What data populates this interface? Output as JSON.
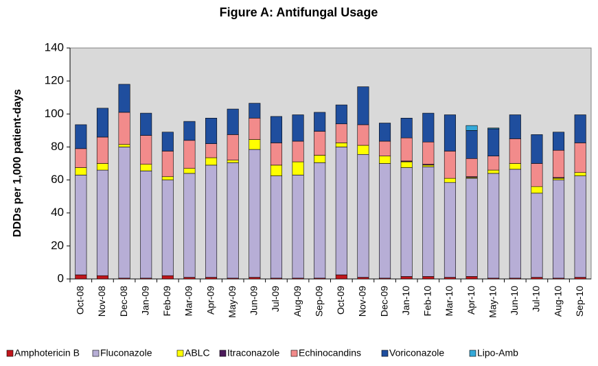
{
  "chart_data": {
    "type": "stacked_bar",
    "title": "Figure A: Antifungal Usage",
    "y_label": "DDDs per 1,000 patient-days",
    "categories": [
      "Oct-08",
      "Nov-08",
      "Dec-08",
      "Jan-09",
      "Feb-09",
      "Mar-09",
      "Apr-09",
      "May-09",
      "Jun-09",
      "Jul-09",
      "Aug-09",
      "Sep-09",
      "Oct-09",
      "Nov-09",
      "Dec-09",
      "Jan-10",
      "Feb-10",
      "Mar-10",
      "Apr-10",
      "May-10",
      "Jun-10",
      "Jul-10",
      "Aug-10",
      "Sep-10"
    ],
    "series": [
      {
        "name": "Amphotericin B",
        "color": "#c0161c",
        "values": [
          2.5,
          2,
          0.5,
          0.5,
          2,
          1,
          1,
          0.5,
          1,
          0.5,
          0.5,
          0.5,
          2.5,
          1,
          0.5,
          1.5,
          1.5,
          1,
          1.5,
          0.5,
          0.5,
          1,
          0.5,
          1
        ]
      },
      {
        "name": "Fluconazole",
        "color": "#b7aed6",
        "values": [
          60.5,
          64,
          79.5,
          65,
          58,
          63,
          68,
          70,
          77.5,
          62,
          62.5,
          70,
          77.5,
          74.5,
          69.5,
          66,
          66.5,
          57.5,
          59.5,
          63.5,
          66,
          51,
          59.5,
          61.5
        ]
      },
      {
        "name": "ABLC",
        "color": "#ffff00",
        "values": [
          4.5,
          4,
          1.5,
          4,
          2,
          3,
          4.5,
          1.5,
          6,
          6.5,
          8,
          4.5,
          2.5,
          5.5,
          4.5,
          3.5,
          1,
          2.5,
          0.5,
          2,
          3.5,
          4,
          1,
          2
        ]
      },
      {
        "name": "Itraconazole",
        "color": "#4b1a5a",
        "values": [
          0,
          0,
          0,
          0,
          0,
          0,
          0,
          0,
          0,
          0,
          0,
          0,
          0,
          0,
          0,
          0.5,
          0.5,
          0,
          0.5,
          0,
          0,
          0,
          0.5,
          0
        ]
      },
      {
        "name": "Echinocandins",
        "color": "#f28b8b",
        "values": [
          11.5,
          16,
          19.5,
          17.5,
          15.5,
          17,
          8.5,
          15.5,
          13,
          13.5,
          12.5,
          14.5,
          11.5,
          12.5,
          9,
          14,
          13.5,
          16.5,
          11,
          8.5,
          15,
          14,
          16.5,
          18
        ]
      },
      {
        "name": "Voriconazole",
        "color": "#1f4e9e",
        "values": [
          14.5,
          17.5,
          17,
          13.5,
          11.5,
          11.5,
          15.5,
          15.5,
          9,
          16,
          16,
          11.5,
          11.5,
          23,
          11,
          12,
          17.5,
          22,
          17,
          16.5,
          14.5,
          17.5,
          11,
          17
        ]
      },
      {
        "name": "Lipo-Amb",
        "color": "#35a9d8",
        "values": [
          0,
          0,
          0,
          0,
          0,
          0,
          0,
          0,
          0,
          0,
          0,
          0,
          0,
          0,
          0,
          0,
          0,
          0,
          3,
          0.5,
          0,
          0,
          0,
          0
        ]
      }
    ],
    "ylim": [
      0,
      140
    ],
    "yticks": [
      0,
      20,
      40,
      60,
      80,
      100,
      120,
      140
    ],
    "grid": false,
    "legend": "bottom"
  }
}
